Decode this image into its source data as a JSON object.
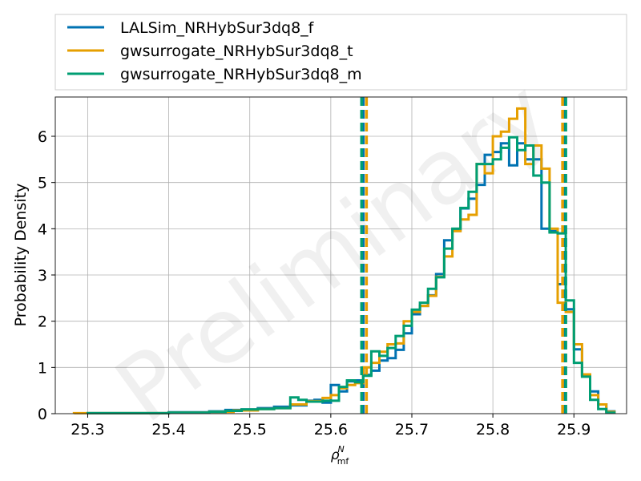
{
  "chart_data": {
    "type": "histogram",
    "xlabel_base": "ρ",
    "xlabel_super": "N",
    "xlabel_sub": "mf",
    "ylabel": "Probability Density",
    "watermark": "Preliminary",
    "xlim": [
      25.26,
      25.965
    ],
    "ylim": [
      0,
      6.85
    ],
    "xticks": [
      "25.3",
      "25.4",
      "25.5",
      "25.6",
      "25.7",
      "25.8",
      "25.9"
    ],
    "yticks": [
      "0",
      "1",
      "2",
      "3",
      "4",
      "5",
      "6"
    ],
    "grid": true,
    "legend_position": "top, outside plot",
    "series": [
      {
        "name": "LALSim_NRHybSur3dq8_f",
        "color": "#0072b2",
        "vlines": [
          25.64,
          25.888
        ],
        "steps": [
          [
            25.3,
            0.01
          ],
          [
            25.35,
            0.01
          ],
          [
            25.4,
            0.03
          ],
          [
            25.45,
            0.05
          ],
          [
            25.47,
            0.08
          ],
          [
            25.49,
            0.09
          ],
          [
            25.51,
            0.12
          ],
          [
            25.53,
            0.15
          ],
          [
            25.55,
            0.18
          ],
          [
            25.57,
            0.28
          ],
          [
            25.58,
            0.3
          ],
          [
            25.59,
            0.24
          ],
          [
            25.6,
            0.62
          ],
          [
            25.61,
            0.48
          ],
          [
            25.62,
            0.7
          ],
          [
            25.63,
            0.72
          ],
          [
            25.64,
            0.84
          ],
          [
            25.65,
            0.93
          ],
          [
            25.66,
            1.15
          ],
          [
            25.67,
            1.2
          ],
          [
            25.68,
            1.38
          ],
          [
            25.69,
            1.74
          ],
          [
            25.7,
            2.15
          ],
          [
            25.71,
            2.33
          ],
          [
            25.72,
            2.56
          ],
          [
            25.73,
            3.02
          ],
          [
            25.74,
            3.75
          ],
          [
            25.75,
            3.97
          ],
          [
            25.76,
            4.44
          ],
          [
            25.77,
            4.65
          ],
          [
            25.78,
            4.95
          ],
          [
            25.79,
            5.6
          ],
          [
            25.8,
            5.66
          ],
          [
            25.81,
            5.85
          ],
          [
            25.82,
            5.37
          ],
          [
            25.83,
            5.85
          ],
          [
            25.84,
            5.5
          ],
          [
            25.85,
            5.5
          ],
          [
            25.86,
            4.0
          ],
          [
            25.87,
            3.95
          ],
          [
            25.88,
            2.8
          ],
          [
            25.89,
            2.26
          ],
          [
            25.9,
            1.39
          ],
          [
            25.91,
            0.83
          ],
          [
            25.92,
            0.48
          ],
          [
            25.93,
            0.2
          ],
          [
            25.94,
            0.05
          ]
        ]
      },
      {
        "name": "gwsurrogate_NRHybSur3dq8_t",
        "color": "#e69f00",
        "vlines": [
          25.644,
          25.886
        ],
        "steps": [
          [
            25.283,
            0.01
          ],
          [
            25.35,
            0.01
          ],
          [
            25.4,
            0.02
          ],
          [
            25.45,
            0.04
          ],
          [
            25.48,
            0.07
          ],
          [
            25.51,
            0.1
          ],
          [
            25.53,
            0.12
          ],
          [
            25.55,
            0.2
          ],
          [
            25.57,
            0.27
          ],
          [
            25.59,
            0.34
          ],
          [
            25.6,
            0.4
          ],
          [
            25.61,
            0.55
          ],
          [
            25.62,
            0.62
          ],
          [
            25.63,
            0.66
          ],
          [
            25.64,
            1.0
          ],
          [
            25.65,
            1.1
          ],
          [
            25.66,
            1.34
          ],
          [
            25.67,
            1.5
          ],
          [
            25.68,
            1.52
          ],
          [
            25.69,
            2.0
          ],
          [
            25.7,
            2.2
          ],
          [
            25.71,
            2.33
          ],
          [
            25.72,
            2.55
          ],
          [
            25.73,
            2.96
          ],
          [
            25.74,
            3.4
          ],
          [
            25.75,
            3.95
          ],
          [
            25.76,
            4.2
          ],
          [
            25.77,
            4.3
          ],
          [
            25.78,
            5.4
          ],
          [
            25.79,
            5.2
          ],
          [
            25.8,
            6.0
          ],
          [
            25.81,
            6.1
          ],
          [
            25.82,
            6.38
          ],
          [
            25.83,
            6.6
          ],
          [
            25.84,
            5.4
          ],
          [
            25.85,
            5.8
          ],
          [
            25.86,
            5.3
          ],
          [
            25.87,
            4.0
          ],
          [
            25.88,
            2.4
          ],
          [
            25.89,
            2.2
          ],
          [
            25.9,
            1.5
          ],
          [
            25.91,
            0.85
          ],
          [
            25.92,
            0.4
          ],
          [
            25.93,
            0.2
          ],
          [
            25.94,
            0.04
          ]
        ]
      },
      {
        "name": "gwsurrogate_NRHybSur3dq8_m",
        "color": "#009e73",
        "vlines": [
          25.638,
          25.89
        ],
        "steps": [
          [
            25.3,
            0.01
          ],
          [
            25.35,
            0.01
          ],
          [
            25.4,
            0.02
          ],
          [
            25.45,
            0.04
          ],
          [
            25.47,
            0.06
          ],
          [
            25.49,
            0.09
          ],
          [
            25.51,
            0.1
          ],
          [
            25.53,
            0.12
          ],
          [
            25.55,
            0.35
          ],
          [
            25.56,
            0.3
          ],
          [
            25.57,
            0.26
          ],
          [
            25.59,
            0.28
          ],
          [
            25.61,
            0.58
          ],
          [
            25.62,
            0.72
          ],
          [
            25.63,
            0.68
          ],
          [
            25.64,
            0.82
          ],
          [
            25.65,
            1.35
          ],
          [
            25.66,
            1.25
          ],
          [
            25.67,
            1.42
          ],
          [
            25.68,
            1.68
          ],
          [
            25.69,
            1.9
          ],
          [
            25.7,
            2.25
          ],
          [
            25.71,
            2.4
          ],
          [
            25.72,
            2.7
          ],
          [
            25.73,
            2.95
          ],
          [
            25.74,
            3.57
          ],
          [
            25.75,
            4.0
          ],
          [
            25.76,
            4.45
          ],
          [
            25.77,
            4.8
          ],
          [
            25.78,
            5.4
          ],
          [
            25.79,
            5.4
          ],
          [
            25.8,
            5.5
          ],
          [
            25.81,
            5.75
          ],
          [
            25.82,
            5.98
          ],
          [
            25.83,
            5.7
          ],
          [
            25.84,
            5.8
          ],
          [
            25.85,
            5.15
          ],
          [
            25.86,
            5.0
          ],
          [
            25.87,
            3.92
          ],
          [
            25.88,
            3.9
          ],
          [
            25.89,
            2.45
          ],
          [
            25.9,
            1.1
          ],
          [
            25.91,
            0.8
          ],
          [
            25.92,
            0.3
          ],
          [
            25.93,
            0.1
          ],
          [
            25.94,
            0.02
          ]
        ]
      }
    ]
  }
}
